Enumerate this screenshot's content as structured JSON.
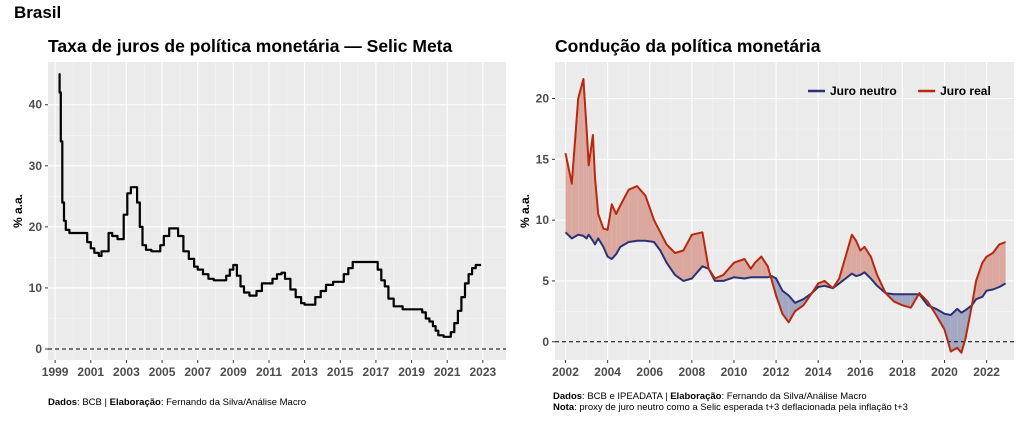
{
  "page_title": "Brasil",
  "chart_data": [
    {
      "type": "line",
      "title": "Taxa de juros de política monetária — Selic Meta",
      "ylabel": "% a.a.",
      "xlabel": "",
      "xlim": [
        1998.6,
        2024.3
      ],
      "ylim": [
        -1.8,
        47
      ],
      "x_ticks": [
        1999,
        2001,
        2003,
        2005,
        2007,
        2009,
        2011,
        2013,
        2015,
        2017,
        2019,
        2021,
        2023
      ],
      "y_ticks": [
        0,
        10,
        20,
        30,
        40
      ],
      "hline": 0,
      "grid": true,
      "series": [
        {
          "color": "#000000",
          "x": [
            1999.2,
            1999.25,
            1999.32,
            1999.4,
            1999.5,
            1999.6,
            1999.8,
            2000.0,
            2000.4,
            2000.8,
            2001.0,
            2001.2,
            2001.45,
            2001.6,
            2002.0,
            2002.2,
            2002.5,
            2002.75,
            2002.85,
            2003.05,
            2003.25,
            2003.45,
            2003.6,
            2003.75,
            2003.9,
            2004.1,
            2004.4,
            2004.7,
            2004.9,
            2005.1,
            2005.4,
            2005.6,
            2005.9,
            2006.2,
            2006.5,
            2006.8,
            2007.0,
            2007.3,
            2007.6,
            2007.9,
            2008.3,
            2008.6,
            2008.8,
            2009.0,
            2009.2,
            2009.4,
            2009.6,
            2009.9,
            2010.1,
            2010.3,
            2010.6,
            2010.9,
            2011.2,
            2011.45,
            2011.7,
            2011.9,
            2012.2,
            2012.5,
            2012.8,
            2013.0,
            2013.3,
            2013.6,
            2013.9,
            2014.2,
            2014.6,
            2014.9,
            2015.2,
            2015.45,
            2015.7,
            2016.2,
            2016.6,
            2016.9,
            2017.1,
            2017.3,
            2017.5,
            2017.7,
            2018.0,
            2018.5,
            2019.0,
            2019.4,
            2019.6,
            2019.8,
            2020.0,
            2020.2,
            2020.35,
            2020.5,
            2020.8,
            2021.0,
            2021.2,
            2021.4,
            2021.6,
            2021.8,
            2022.0,
            2022.2,
            2022.4,
            2022.6,
            2022.9
          ],
          "y": [
            45,
            42,
            34,
            24,
            21,
            19.5,
            19,
            19,
            19,
            17.5,
            16.5,
            15.75,
            15.25,
            16,
            19,
            18.5,
            18,
            18,
            22,
            25.5,
            26.5,
            26.5,
            24,
            20,
            17,
            16.25,
            16,
            16,
            17,
            18.5,
            19.75,
            19.75,
            18.5,
            16,
            14.75,
            13.5,
            13,
            12.25,
            11.5,
            11.25,
            11.25,
            12,
            13,
            13.75,
            12,
            10.25,
            9.25,
            8.75,
            8.75,
            9.5,
            10.75,
            10.75,
            11.5,
            12.25,
            12.5,
            11.5,
            9.75,
            8.5,
            7.5,
            7.25,
            7.25,
            8.5,
            9.5,
            10.5,
            11,
            11,
            12.25,
            13.25,
            14.25,
            14.25,
            14.25,
            14.25,
            13,
            11.25,
            10.25,
            8.25,
            7,
            6.5,
            6.5,
            6.5,
            6,
            5,
            4.5,
            3.75,
            3,
            2.25,
            2,
            2,
            2.75,
            4.25,
            6.25,
            8.5,
            10.75,
            12.25,
            13.25,
            13.75,
            13.75
          ]
        }
      ],
      "caption": {
        "dados_label": "Dados",
        "dados_text": ": BCB | ",
        "elab_label": "Elaboração",
        "elab_text": ": Fernando da Silva/Análise Macro"
      }
    },
    {
      "type": "area",
      "title": "Condução da política monetária",
      "ylabel": "% a.a.",
      "xlabel": "",
      "xlim": [
        2001.5,
        2023.3
      ],
      "ylim": [
        -1.5,
        23
      ],
      "x_ticks": [
        2002,
        2004,
        2006,
        2008,
        2010,
        2012,
        2014,
        2016,
        2018,
        2020,
        2022
      ],
      "y_ticks": [
        0,
        5,
        10,
        15,
        20
      ],
      "hline": 0,
      "grid": true,
      "legend": {
        "position": "top-right",
        "items": [
          {
            "name": "Juro neutro",
            "color": "#2a3275"
          },
          {
            "name": "Juro real",
            "color": "#b7280f"
          }
        ]
      },
      "fill_colors": {
        "real_above": "#dba89f",
        "neutral_above": "#a4a7c2"
      },
      "x": [
        2002.0,
        2002.3,
        2002.6,
        2002.85,
        2003.0,
        2003.1,
        2003.3,
        2003.4,
        2003.55,
        2003.8,
        2004.0,
        2004.2,
        2004.4,
        2004.6,
        2005.0,
        2005.4,
        2005.8,
        2006.2,
        2006.5,
        2006.8,
        2007.2,
        2007.6,
        2008.0,
        2008.5,
        2008.8,
        2009.1,
        2009.5,
        2010.0,
        2010.5,
        2010.8,
        2011.0,
        2011.3,
        2011.6,
        2011.8,
        2012.0,
        2012.3,
        2012.6,
        2012.9,
        2013.3,
        2013.7,
        2014.0,
        2014.3,
        2014.7,
        2015.0,
        2015.3,
        2015.6,
        2015.8,
        2016.0,
        2016.2,
        2016.5,
        2016.8,
        2017.2,
        2017.6,
        2018.0,
        2018.4,
        2018.8,
        2019.2,
        2019.6,
        2020.0,
        2020.3,
        2020.6,
        2020.8,
        2021.0,
        2021.3,
        2021.5,
        2021.8,
        2022.0,
        2022.3,
        2022.6,
        2022.9
      ],
      "series": [
        {
          "name": "Juro neutro",
          "color": "#2a3275",
          "values": [
            9,
            8.5,
            8.8,
            8.7,
            8.5,
            8.8,
            8.3,
            8.0,
            8.5,
            7.8,
            7.0,
            6.8,
            7.2,
            7.8,
            8.2,
            8.3,
            8.3,
            8.2,
            7.5,
            6.5,
            5.5,
            5.0,
            5.2,
            6.2,
            6.0,
            5.0,
            5.0,
            5.3,
            5.2,
            5.3,
            5.3,
            5.3,
            5.3,
            5.4,
            5.2,
            4.2,
            3.8,
            3.2,
            3.5,
            4.0,
            4.5,
            4.6,
            4.4,
            4.8,
            5.2,
            5.6,
            5.4,
            5.5,
            5.7,
            5.2,
            4.6,
            4.0,
            3.9,
            3.9,
            3.9,
            3.9,
            3.0,
            2.7,
            2.3,
            2.2,
            2.7,
            2.4,
            2.6,
            3.0,
            3.5,
            3.7,
            4.2,
            4.3,
            4.5,
            4.8
          ]
        },
        {
          "name": "Juro real",
          "color": "#b7280f",
          "values": [
            15.5,
            13,
            20,
            21.6,
            17.5,
            14.5,
            17,
            13.5,
            10.5,
            9.3,
            9.2,
            11.3,
            10.5,
            11.2,
            12.5,
            12.8,
            12.0,
            10.0,
            9.0,
            8.0,
            7.3,
            7.5,
            8.8,
            9.0,
            6.0,
            5.2,
            5.5,
            6.5,
            6.8,
            6.0,
            6.5,
            7.0,
            6.2,
            5.0,
            3.8,
            2.3,
            1.6,
            2.5,
            3.0,
            4.0,
            4.8,
            5.0,
            4.4,
            5.2,
            7.0,
            8.8,
            8.3,
            7.5,
            7.8,
            7.0,
            5.5,
            4.0,
            3.3,
            3.0,
            2.8,
            4.0,
            3.3,
            2.2,
            1.0,
            -0.8,
            -0.5,
            -0.9,
            0.3,
            3.0,
            5.0,
            6.5,
            7.0,
            7.3,
            8.0,
            8.2
          ]
        }
      ],
      "caption": {
        "dados_label": "Dados",
        "dados_text": ": BCB e IPEADATA | ",
        "elab_label": "Elaboração",
        "elab_text": ": Fernando da Silva/Análise Macro",
        "nota_label": "Nota",
        "nota_text": ": proxy de juro neutro como a Selic esperada t+3 deflacionada pela inflação t+3"
      }
    }
  ]
}
